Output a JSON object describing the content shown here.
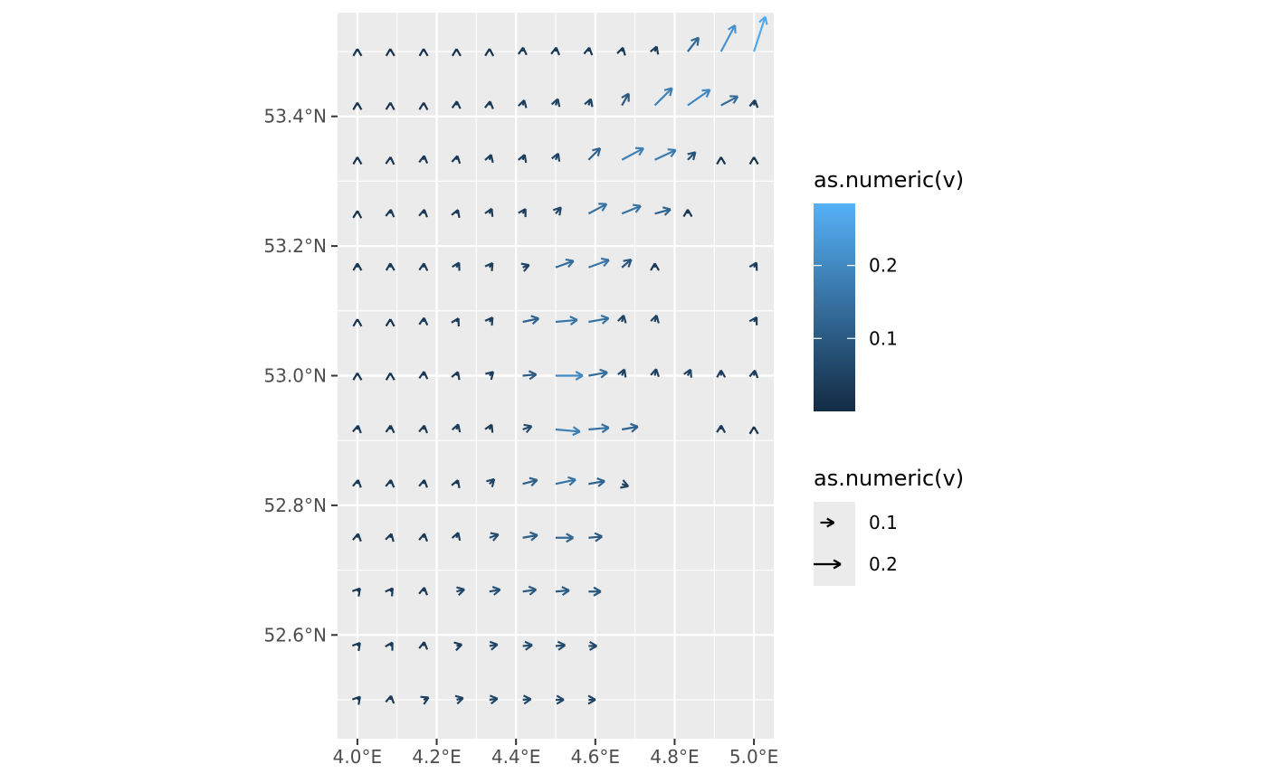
{
  "chart_data": {
    "type": "vector-field",
    "xlabel": "",
    "ylabel": "",
    "xlim": [
      3.95,
      5.05
    ],
    "ylim": [
      52.44,
      53.56
    ],
    "x_ticks": [
      {
        "value": 4.0,
        "label": "4.0°E"
      },
      {
        "value": 4.2,
        "label": "4.2°E"
      },
      {
        "value": 4.4,
        "label": "4.4°E"
      },
      {
        "value": 4.6,
        "label": "4.6°E"
      },
      {
        "value": 4.8,
        "label": "4.8°E"
      },
      {
        "value": 5.0,
        "label": "5.0°E"
      }
    ],
    "y_ticks": [
      {
        "value": 52.6,
        "label": "52.6°N"
      },
      {
        "value": 52.8,
        "label": "52.8°N"
      },
      {
        "value": 53.0,
        "label": "53.0°N"
      },
      {
        "value": 53.2,
        "label": "53.2°N"
      },
      {
        "value": 53.4,
        "label": "53.4°N"
      }
    ],
    "grid": true,
    "legend_position": "right",
    "color_scale": {
      "title": "as.numeric(v)",
      "low_color": "#132B43",
      "high_color": "#56B1F7",
      "range": [
        0.0,
        0.285
      ],
      "breaks": [
        {
          "value": 0.1,
          "label": "0.1"
        },
        {
          "value": 0.2,
          "label": "0.2"
        }
      ]
    },
    "size_legend": {
      "title": "as.numeric(v)",
      "entries": [
        {
          "value": 0.1,
          "label": "0.1"
        },
        {
          "value": 0.2,
          "label": "0.2"
        }
      ]
    },
    "columns_x": [
      4.0,
      4.083,
      4.167,
      4.25,
      4.333,
      4.417,
      4.5,
      4.583,
      4.667,
      4.75,
      4.833,
      4.917,
      5.0
    ],
    "rows": [
      {
        "y": 53.5,
        "vectors": [
          [
            90,
            0.02
          ],
          [
            90,
            0.02
          ],
          [
            90,
            0.02
          ],
          [
            90,
            0.02
          ],
          [
            88,
            0.02
          ],
          [
            85,
            0.03
          ],
          [
            82,
            0.03
          ],
          [
            80,
            0.03
          ],
          [
            75,
            0.03
          ],
          [
            70,
            0.04
          ],
          [
            52,
            0.13
          ],
          [
            62,
            0.22
          ],
          [
            72,
            0.27
          ]
        ]
      },
      {
        "y": 53.417,
        "vectors": [
          [
            90,
            0.02
          ],
          [
            88,
            0.02
          ],
          [
            88,
            0.02
          ],
          [
            85,
            0.03
          ],
          [
            82,
            0.03
          ],
          [
            75,
            0.04
          ],
          [
            72,
            0.05
          ],
          [
            70,
            0.05
          ],
          [
            60,
            0.1
          ],
          [
            45,
            0.18
          ],
          [
            35,
            0.2
          ],
          [
            28,
            0.14
          ],
          [
            80,
            0.04
          ]
        ]
      },
      {
        "y": 53.333,
        "vectors": [
          [
            90,
            0.02
          ],
          [
            85,
            0.02
          ],
          [
            82,
            0.03
          ],
          [
            78,
            0.03
          ],
          [
            72,
            0.04
          ],
          [
            70,
            0.04
          ],
          [
            68,
            0.05
          ],
          [
            45,
            0.12
          ],
          [
            28,
            0.18
          ],
          [
            25,
            0.17
          ],
          [
            45,
            0.08
          ],
          [
            90,
            0.02
          ],
          [
            90,
            0.02
          ]
        ]
      },
      {
        "y": 53.25,
        "vectors": [
          [
            88,
            0.02
          ],
          [
            82,
            0.03
          ],
          [
            80,
            0.03
          ],
          [
            70,
            0.03
          ],
          [
            65,
            0.04
          ],
          [
            60,
            0.04
          ],
          [
            50,
            0.06
          ],
          [
            28,
            0.15
          ],
          [
            22,
            0.15
          ],
          [
            15,
            0.12
          ],
          [
            90,
            0.03
          ],
          null,
          null
        ]
      },
      {
        "y": 53.167,
        "vectors": [
          [
            90,
            0.03
          ],
          [
            90,
            0.03
          ],
          [
            85,
            0.03
          ],
          [
            62,
            0.04
          ],
          [
            55,
            0.04
          ],
          [
            20,
            0.05
          ],
          [
            20,
            0.14
          ],
          [
            20,
            0.16
          ],
          [
            40,
            0.09
          ],
          [
            90,
            0.03
          ],
          null,
          null,
          [
            62,
            0.04
          ]
        ]
      },
      {
        "y": 53.083,
        "vectors": [
          [
            90,
            0.02
          ],
          [
            88,
            0.02
          ],
          [
            85,
            0.03
          ],
          [
            62,
            0.03
          ],
          [
            55,
            0.04
          ],
          [
            12,
            0.12
          ],
          [
            5,
            0.16
          ],
          [
            10,
            0.15
          ],
          [
            75,
            0.05
          ],
          [
            75,
            0.05
          ],
          null,
          null,
          [
            60,
            0.04
          ]
        ]
      },
      {
        "y": 53.0,
        "vectors": [
          [
            90,
            0.02
          ],
          [
            90,
            0.02
          ],
          [
            85,
            0.03
          ],
          [
            70,
            0.03
          ],
          [
            45,
            0.04
          ],
          [
            5,
            0.1
          ],
          [
            0,
            0.2
          ],
          [
            10,
            0.14
          ],
          [
            68,
            0.05
          ],
          [
            78,
            0.05
          ],
          [
            65,
            0.05
          ],
          [
            90,
            0.04
          ],
          [
            80,
            0.04
          ]
        ]
      },
      {
        "y": 52.917,
        "vectors": [
          [
            80,
            0.03
          ],
          [
            85,
            0.03
          ],
          [
            80,
            0.03
          ],
          [
            72,
            0.04
          ],
          [
            65,
            0.04
          ],
          [
            20,
            0.07
          ],
          [
            -5,
            0.18
          ],
          [
            5,
            0.15
          ],
          [
            10,
            0.12
          ],
          null,
          null,
          [
            88,
            0.03
          ],
          [
            90,
            0.02
          ]
        ]
      },
      {
        "y": 52.833,
        "vectors": [
          [
            80,
            0.03
          ],
          [
            82,
            0.03
          ],
          [
            80,
            0.03
          ],
          [
            70,
            0.03
          ],
          [
            45,
            0.05
          ],
          [
            15,
            0.11
          ],
          [
            12,
            0.15
          ],
          [
            10,
            0.12
          ],
          [
            -20,
            0.05
          ],
          null,
          null,
          null,
          null
        ]
      },
      {
        "y": 52.75,
        "vectors": [
          [
            80,
            0.03
          ],
          [
            75,
            0.03
          ],
          [
            80,
            0.03
          ],
          [
            72,
            0.04
          ],
          [
            20,
            0.07
          ],
          [
            10,
            0.11
          ],
          [
            0,
            0.13
          ],
          [
            5,
            0.1
          ],
          null,
          null,
          null,
          null,
          null
        ]
      },
      {
        "y": 52.667,
        "vectors": [
          [
            50,
            0.03
          ],
          [
            55,
            0.03
          ],
          [
            80,
            0.03
          ],
          [
            15,
            0.06
          ],
          [
            10,
            0.08
          ],
          [
            8,
            0.1
          ],
          [
            5,
            0.1
          ],
          [
            0,
            0.09
          ],
          null,
          null,
          null,
          null,
          null
        ]
      },
      {
        "y": 52.583,
        "vectors": [
          [
            50,
            0.03
          ],
          [
            60,
            0.03
          ],
          [
            82,
            0.03
          ],
          [
            15,
            0.04
          ],
          [
            10,
            0.06
          ],
          [
            5,
            0.07
          ],
          [
            5,
            0.07
          ],
          [
            0,
            0.06
          ],
          null,
          null,
          null,
          null,
          null
        ]
      },
      {
        "y": 52.5,
        "vectors": [
          [
            50,
            0.03
          ],
          [
            80,
            0.03
          ],
          [
            25,
            0.04
          ],
          [
            15,
            0.05
          ],
          [
            8,
            0.06
          ],
          [
            5,
            0.06
          ],
          [
            0,
            0.06
          ],
          [
            0,
            0.05
          ],
          null,
          null,
          null,
          null,
          null
        ]
      }
    ]
  }
}
